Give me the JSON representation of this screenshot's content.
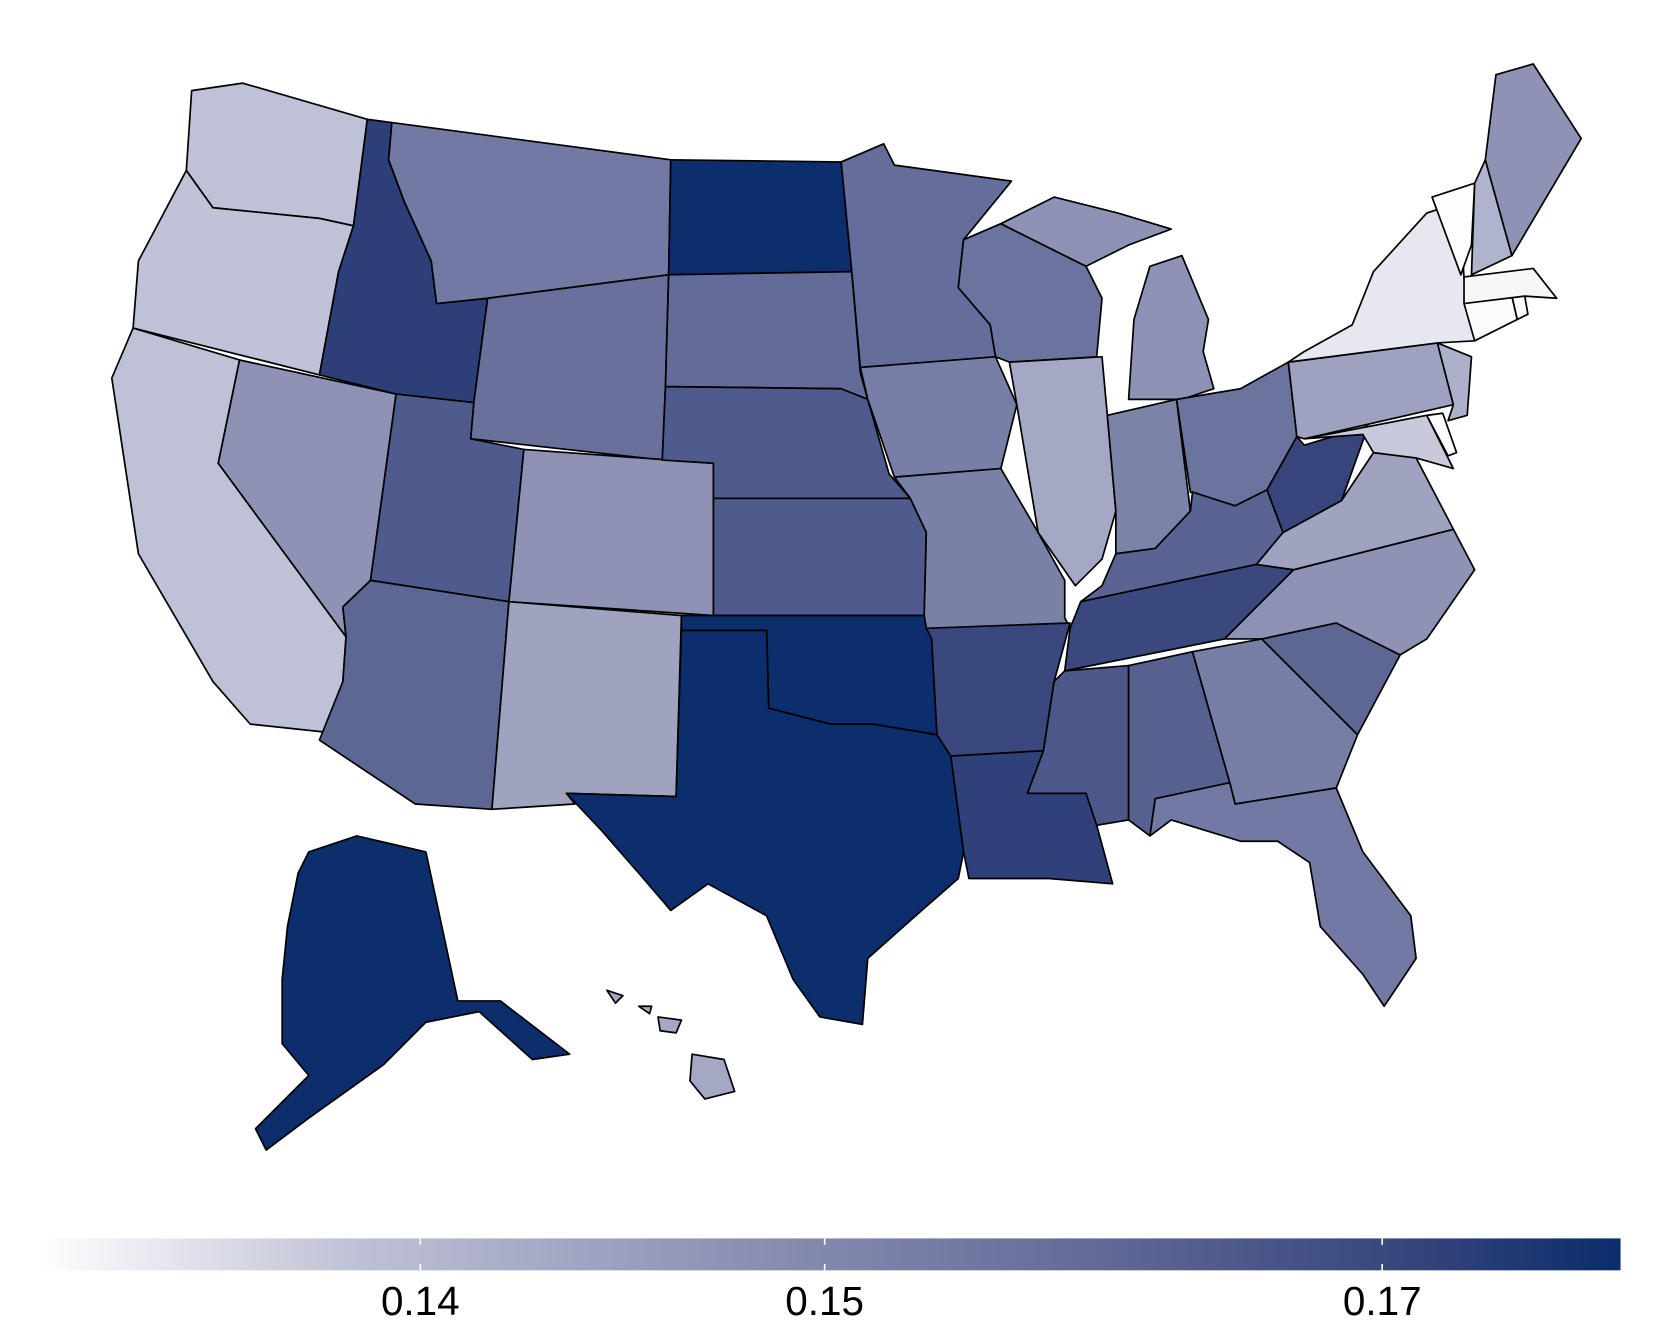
{
  "chart_data": {
    "type": "choropleth",
    "values": [
      0.1429,
      0.1428,
      0.143,
      0.1516,
      0.1689,
      0.1571,
      0.1591,
      0.1634,
      0.1516,
      0.1611,
      0.1486,
      0.1724,
      0.1601,
      0.1634,
      0.1634,
      0.1724,
      0.1724,
      0.1596,
      0.1559,
      0.1555,
      0.1671,
      0.1686,
      0.1584,
      0.1476,
      0.1516,
      0.1551,
      0.1584,
      0.1616,
      0.1671,
      0.1639,
      0.1621,
      0.1559,
      0.1571,
      0.1611,
      0.1516,
      0.1486,
      0.1676,
      0.1489,
      0.1384,
      0.1419,
      0.1359,
      0.1461,
      0.136,
      0.1358,
      0.1365,
      0.1357,
      0.1456,
      0.1516,
      0.1724,
      0.1476
    ],
    "colorbar_lim": [
      0.1355,
      0.1727
    ],
    "colorbar_ticks": [
      {
        "value": 0.1445,
        "label": "0.14"
      },
      {
        "value": 0.154,
        "label": "0.15"
      },
      {
        "value": 0.1671,
        "label": "0.17"
      }
    ],
    "colorscale": [
      [
        0,
        "#ffffff"
      ],
      [
        0.2,
        "#bfc1d6"
      ],
      [
        0.43,
        "#8f93b5"
      ],
      [
        0.66,
        "#636c98"
      ],
      [
        0.88,
        "#33427a"
      ],
      [
        1,
        "#0a2d6b"
      ]
    ]
  }
}
